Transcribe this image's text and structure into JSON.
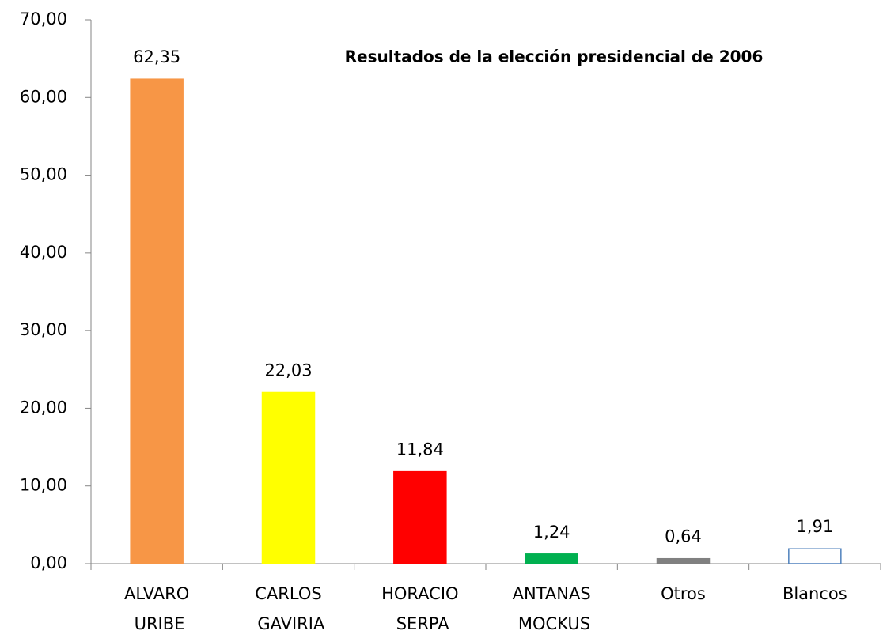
{
  "chart_data": {
    "type": "bar",
    "title": "Resultados de la elección presidencial de 2006",
    "categories": [
      "ALVARO URIBE",
      "CARLOS GAVIRIA",
      "HORACIO SERPA",
      "ANTANAS MOCKUS",
      "Otros",
      "Blancos"
    ],
    "values": [
      62.35,
      22.03,
      11.84,
      1.24,
      0.64,
      1.91
    ],
    "value_labels": [
      "62,35",
      "22,03",
      "11,84",
      "1,24",
      "0,64",
      "1,91"
    ],
    "colors": [
      "#f79646",
      "#ffff00",
      "#ff0000",
      "#00b050",
      "#808080",
      "#ffffff"
    ],
    "edge_colors": [
      "#f79646",
      "#ffff00",
      "#ff0000",
      "#00b050",
      "#808080",
      "#4f81bd"
    ],
    "ylim": [
      0,
      70
    ],
    "yticks": [
      {
        "value": 0,
        "label": "0,00"
      },
      {
        "value": 10,
        "label": "10,00"
      },
      {
        "value": 20,
        "label": "20,00"
      },
      {
        "value": 30,
        "label": "30,00"
      },
      {
        "value": 40,
        "label": "40,00"
      },
      {
        "value": 50,
        "label": "50,00"
      },
      {
        "value": 60,
        "label": "60,00"
      },
      {
        "value": 70,
        "label": "70,00"
      }
    ],
    "grid": false
  }
}
